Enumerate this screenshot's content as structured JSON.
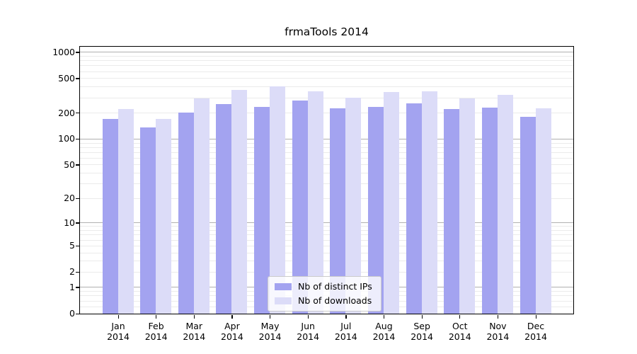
{
  "chart_data": {
    "type": "bar",
    "title": "frmaTools 2014",
    "categories": [
      "Jan",
      "Feb",
      "Mar",
      "Apr",
      "May",
      "Jun",
      "Jul",
      "Aug",
      "Sep",
      "Oct",
      "Nov",
      "Dec"
    ],
    "x_year_suffix": "2014",
    "series": [
      {
        "name": "Nb of distinct IPs",
        "color": "#a3a3f0",
        "values": [
          170,
          135,
          200,
          250,
          235,
          275,
          225,
          235,
          255,
          220,
          230,
          180
        ]
      },
      {
        "name": "Nb of downloads",
        "color": "#dcdcf8",
        "values": [
          220,
          170,
          295,
          365,
          405,
          355,
          300,
          345,
          355,
          290,
          320,
          225
        ]
      }
    ],
    "yscale": "log1p",
    "ylim": [
      0,
      1160
    ],
    "ytick_labels": [
      1000,
      500,
      200,
      100,
      50,
      20,
      10,
      5,
      2,
      1,
      0
    ],
    "grid": true,
    "legend_position": "lower center",
    "colors": {
      "major_grid": "#b0b0b0",
      "minor_grid": "#ebebeb",
      "spine": "#000000",
      "background": "#ffffff",
      "text": "#000000"
    }
  }
}
